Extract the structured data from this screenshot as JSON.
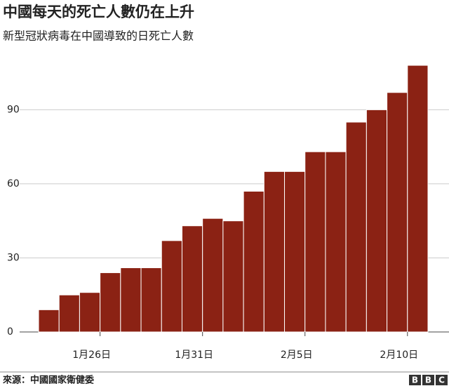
{
  "chart_data": {
    "type": "bar",
    "title": "中國每天的死亡人數仍在上升",
    "subtitle": "新型冠狀病毒在中國導致的日死亡人數",
    "categories": [
      null,
      null,
      null,
      "1月26日",
      null,
      null,
      null,
      null,
      "1月31日",
      null,
      null,
      null,
      null,
      "2月5日",
      null,
      null,
      null,
      null,
      "2月10日"
    ],
    "values": [
      9,
      15,
      16,
      24,
      26,
      26,
      37,
      43,
      46,
      45,
      57,
      65,
      65,
      73,
      73,
      85,
      90,
      97,
      108
    ],
    "color": "#8b2214",
    "ylim": [
      0,
      112
    ],
    "yticks": [
      0,
      30,
      60,
      90
    ],
    "grid": true,
    "source": "來源：中國國家衛健委",
    "logo": [
      "B",
      "B",
      "C"
    ]
  }
}
